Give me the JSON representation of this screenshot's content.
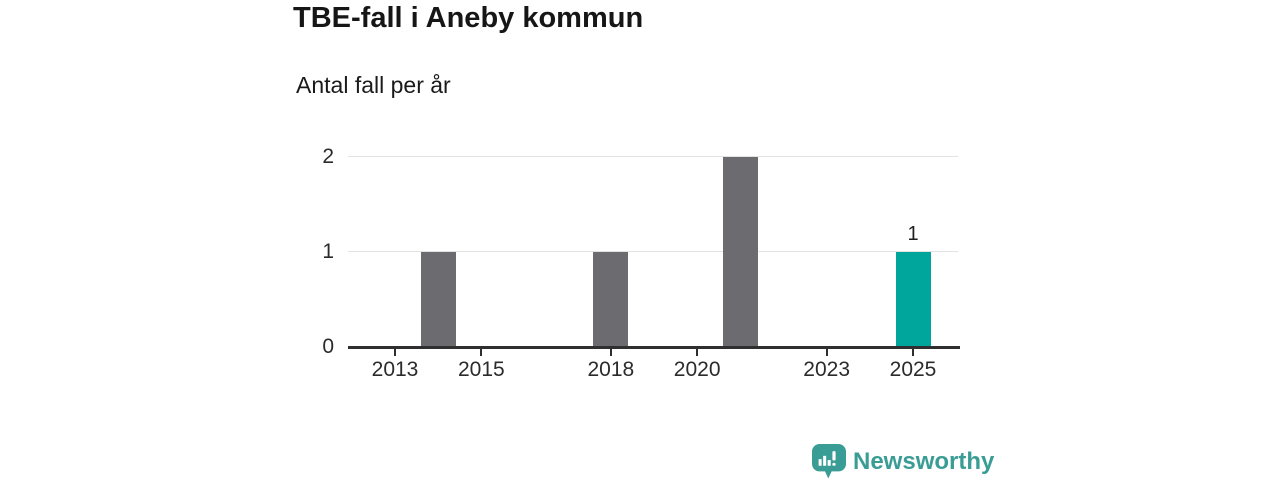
{
  "header": {
    "title": "TBE-fall i Aneby kommun",
    "subtitle": "Antal fall per år"
  },
  "branding": {
    "name": "Newsworthy",
    "icon": "newsworthy-speech-bubble-bar-chart-icon",
    "color": "#3a9d95"
  },
  "colors": {
    "bar_default": "#6b6b70",
    "bar_highlight": "#00a69b",
    "gridline": "#e2e2e2",
    "axis": "#2f2f2f",
    "text": "#1a1a1a"
  },
  "chart_data": {
    "type": "bar",
    "title": "TBE-fall i Aneby kommun",
    "subtitle": "Antal fall per år",
    "categories": [
      2012,
      2013,
      2014,
      2015,
      2016,
      2017,
      2018,
      2019,
      2020,
      2021,
      2022,
      2023,
      2024,
      2025
    ],
    "values": [
      0,
      0,
      1,
      0,
      0,
      0,
      1,
      0,
      0,
      2,
      0,
      0,
      0,
      1
    ],
    "x_tick_labels": [
      "2013",
      "2015",
      "2018",
      "2020",
      "2023",
      "2025"
    ],
    "y_ticks": [
      0,
      1,
      2
    ],
    "ylim": [
      0,
      2
    ],
    "grid": "horizontal",
    "legend": "none",
    "highlight": {
      "year": 2025,
      "value_label": "1"
    }
  }
}
